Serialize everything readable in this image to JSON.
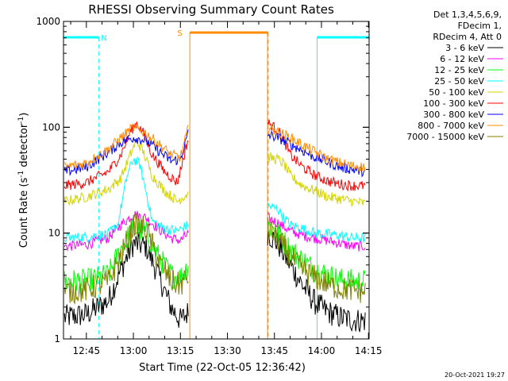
{
  "chart_data": {
    "type": "line",
    "title": "RHESSI Observing Summary Count Rates",
    "xlabel": "Start Time (22-Oct-05 12:36:42)",
    "ylabel_main": "Count Rate (s",
    "ylabel_sup1": "-1",
    "ylabel_mid": " detector",
    "ylabel_sup2": "-1",
    "ylabel_end": ")",
    "y_scale": "log",
    "ylim": [
      1,
      1000
    ],
    "xlim_minutes": [
      37.7,
      135.2
    ],
    "x_ticks": [
      {
        "label": "12:45",
        "minutes": 45
      },
      {
        "label": "13:00",
        "minutes": 60
      },
      {
        "label": "13:15",
        "minutes": 75
      },
      {
        "label": "13:30",
        "minutes": 90
      },
      {
        "label": "13:45",
        "minutes": 105
      },
      {
        "label": "14:00",
        "minutes": 120
      },
      {
        "label": "14:15",
        "minutes": 135
      }
    ],
    "y_ticks": [
      {
        "label": "1",
        "value": 1
      },
      {
        "label": "10",
        "value": 10
      },
      {
        "label": "100",
        "value": 100
      },
      {
        "label": "1000",
        "value": 1000
      }
    ],
    "legend_header": [
      "Det 1,3,4,5,6,9,",
      "FDecim 1,",
      "RDecim 4, Att 0"
    ],
    "legend_placement": "outside-right",
    "series": [
      {
        "name": "3 - 6 keV",
        "color": "#000000",
        "segments": [
          {
            "x": [
              38,
              45,
              52,
              56,
              60,
              64,
              68,
              72,
              75,
              77.6
            ],
            "y": [
              1.6,
              1.7,
              2.3,
              4.5,
              8.0,
              7.5,
              4.0,
              2.0,
              1.5,
              1.8
            ]
          },
          {
            "x": [
              102.8,
              106,
              110,
              114,
              118,
              122,
              126,
              130,
              134
            ],
            "y": [
              10,
              8.0,
              5.0,
              3.2,
              2.2,
              1.8,
              1.6,
              1.5,
              1.5
            ]
          }
        ]
      },
      {
        "name": "6 - 12 keV",
        "color": "#ff00ff",
        "segments": [
          {
            "x": [
              38,
              45,
              52,
              56,
              60,
              64,
              68,
              72,
              75,
              77.6
            ],
            "y": [
              7.5,
              7.8,
              9.0,
              12,
              15,
              14,
              11,
              9.0,
              8.5,
              10
            ]
          },
          {
            "x": [
              102.8,
              106,
              110,
              114,
              118,
              122,
              126,
              130,
              134
            ],
            "y": [
              14,
              12.5,
              10.5,
              9.5,
              9.0,
              8.5,
              8.0,
              7.5,
              7.5
            ]
          }
        ]
      },
      {
        "name": "12 - 25 keV",
        "color": "#00ff00",
        "segments": [
          {
            "x": [
              38,
              45,
              52,
              56,
              60,
              64,
              68,
              72,
              75,
              77.6
            ],
            "y": [
              3.5,
              3.5,
              4.0,
              7.0,
              11,
              10,
              6.0,
              4.0,
              3.8,
              5.0
            ]
          },
          {
            "x": [
              102.8,
              106,
              110,
              114,
              118,
              122,
              126,
              130,
              134
            ],
            "y": [
              12,
              10,
              7.0,
              5.5,
              4.5,
              4.0,
              3.6,
              3.5,
              3.5
            ]
          }
        ]
      },
      {
        "name": "25 - 50 keV",
        "color": "#00ffff",
        "segments": [
          {
            "x": [
              38,
              45,
              52,
              55,
              58,
              60,
              62,
              64,
              66,
              70,
              74,
              77.6
            ],
            "y": [
              9.0,
              9.2,
              9.8,
              12,
              35,
              50,
              45,
              25,
              13,
              11,
              10.5,
              12
            ]
          },
          {
            "x": [
              102.8,
              106,
              108,
              110,
              114,
              118,
              122,
              126,
              130,
              134
            ],
            "y": [
              18,
              17,
              14,
              12,
              11,
              10,
              9.8,
              9.5,
              9.0,
              9.0
            ]
          }
        ]
      },
      {
        "name": "50 - 100 keV",
        "color": "#d4d400",
        "segments": [
          {
            "x": [
              38,
              45,
              52,
              56,
              59,
              61,
              63,
              66,
              70,
              74,
              77.6
            ],
            "y": [
              20,
              22,
              26,
              33,
              55,
              75,
              60,
              35,
              25,
              20,
              24
            ]
          },
          {
            "x": [
              102.8,
              106,
              108,
              110,
              114,
              118,
              122,
              126,
              130,
              134
            ],
            "y": [
              52,
              50,
              45,
              35,
              28,
              25,
              22,
              21,
              20,
              19
            ]
          }
        ]
      },
      {
        "name": "100 - 300 keV",
        "color": "#ff0000",
        "segments": [
          {
            "x": [
              38,
              45,
              52,
              56,
              59,
              61,
              63,
              66,
              70,
              74,
              77.6
            ],
            "y": [
              28,
              30,
              38,
              55,
              90,
              110,
              90,
              55,
              38,
              30,
              80
            ]
          },
          {
            "x": [
              102.8,
              106,
              108,
              110,
              114,
              118,
              122,
              126,
              130,
              134
            ],
            "y": [
              110,
              95,
              75,
              55,
              42,
              35,
              31,
              29,
              28,
              28
            ]
          }
        ]
      },
      {
        "name": "300 - 800 keV",
        "color": "#0000ff",
        "segments": [
          {
            "x": [
              38,
              45,
              52,
              56,
              60,
              64,
              68,
              72,
              75,
              77.6
            ],
            "y": [
              38,
              42,
              58,
              72,
              80,
              75,
              60,
              48,
              50,
              90
            ]
          },
          {
            "x": [
              102.8,
              106,
              110,
              114,
              118,
              122,
              126,
              130,
              134
            ],
            "y": [
              85,
              80,
              70,
              60,
              52,
              47,
              42,
              40,
              38
            ]
          }
        ]
      },
      {
        "name": "800 - 7000 keV",
        "color": "#ff8c00",
        "segments": [
          {
            "x": [
              38,
              45,
              52,
              56,
              60,
              64,
              68,
              72,
              75,
              77.6
            ],
            "y": [
              42,
              46,
              62,
              80,
              100,
              88,
              70,
              55,
              52,
              100
            ]
          },
          {
            "x": [
              102.8,
              106,
              110,
              114,
              118,
              122,
              126,
              130,
              134
            ],
            "y": [
              100,
              90,
              80,
              68,
              58,
              50,
              46,
              43,
              42
            ]
          }
        ]
      },
      {
        "name": "7000 - 15000 keV",
        "color": "#808000",
        "segments": [
          {
            "x": [
              38,
              45,
              52,
              56,
              60,
              64,
              68,
              72,
              75,
              77.6
            ],
            "y": [
              2.8,
              2.9,
              3.5,
              6.0,
              12,
              11,
              5.5,
              3.5,
              3.2,
              4.0
            ]
          },
          {
            "x": [
              102.8,
              106,
              110,
              114,
              118,
              122,
              126,
              130,
              134
            ],
            "y": [
              11,
              9.0,
              6.0,
              4.5,
              3.8,
              3.3,
              3.0,
              2.9,
              2.8
            ]
          }
        ]
      }
    ],
    "flag_bars": [
      {
        "label": "N",
        "color": "#00ffff",
        "segments": [
          [
            37.7,
            49.0
          ],
          [
            118.6,
            135.2
          ]
        ],
        "dash_lines": [
          49.0,
          135.2
        ],
        "solid_lines": [
          118.6
        ],
        "label_minutes": 50.6
      },
      {
        "label": "S",
        "color": "#ff8c00",
        "segments": [
          [
            78.0,
            103.0
          ]
        ],
        "dash_lines": [
          103.0
        ],
        "solid_lines": [
          78.0,
          102.8
        ],
        "label_minutes": 74.8
      }
    ],
    "gaps": [
      [
        77.9,
        102.7
      ]
    ],
    "grid": false
  },
  "footer_date": "20-Oct-2021 19:27"
}
